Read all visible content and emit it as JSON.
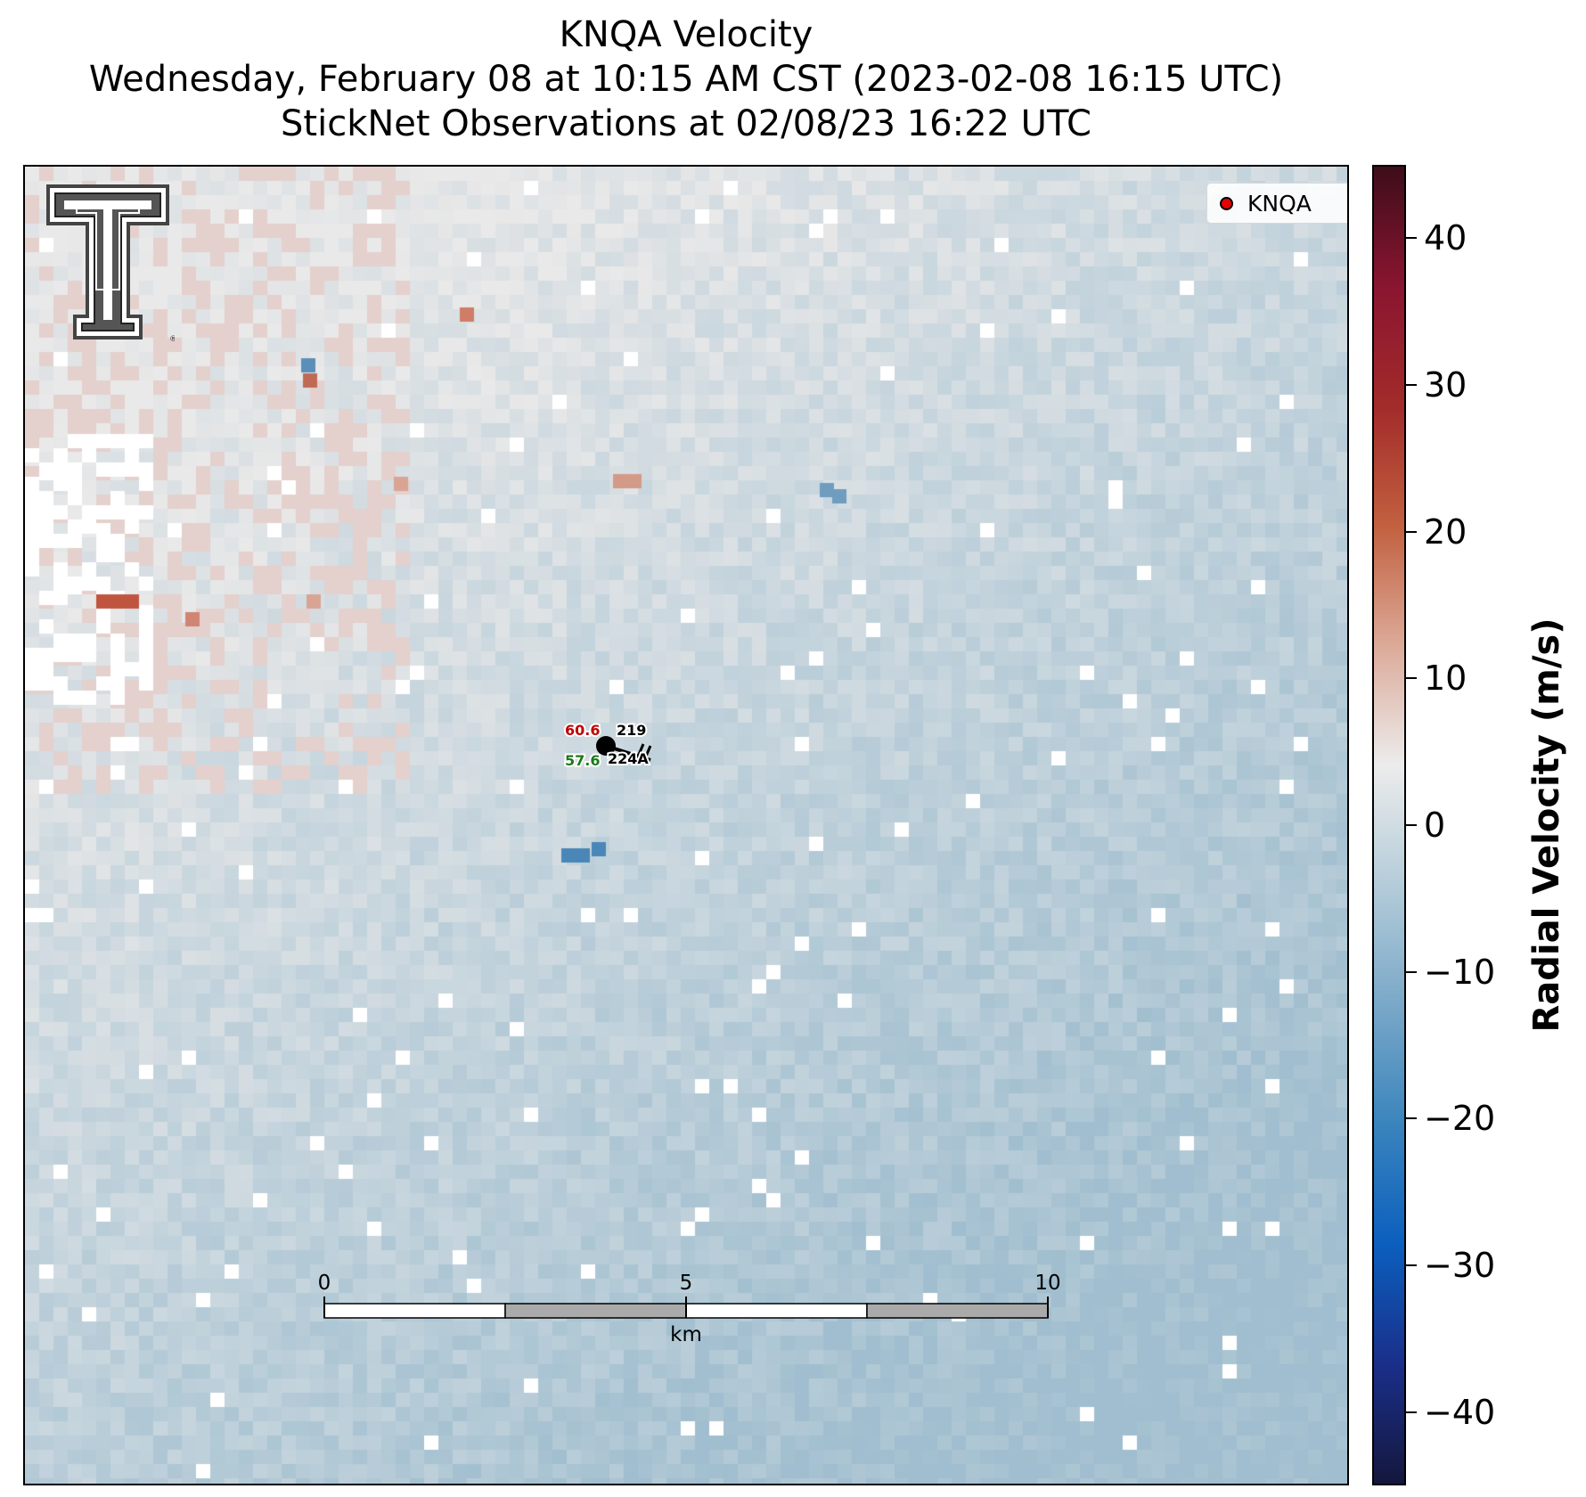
{
  "title": {
    "line1": "KNQA Velocity",
    "line2": "Wednesday, February 08 at 10:15 AM CST (2023-02-08 16:15 UTC)",
    "line3": "StickNet Observations at 02/08/23 16:22 UTC"
  },
  "legend": {
    "label": "KNQA",
    "marker_color": "#e60000"
  },
  "station": {
    "temperature": "60.6",
    "dewpoint": "57.6",
    "pressure": "219",
    "id": "224A",
    "temperature_color": "#c00000",
    "dewpoint_color": "#1a7a1a"
  },
  "scalebar": {
    "ticks": [
      "0",
      "5",
      "10"
    ],
    "unit": "km"
  },
  "colorbar": {
    "label": "Radial Velocity (m/s)",
    "min": -45,
    "max": 45,
    "tick_values": [
      40,
      30,
      20,
      10,
      0,
      -10,
      -20,
      -30,
      -40
    ],
    "tick_labels": [
      "40",
      "30",
      "20",
      "10",
      "0",
      "−10",
      "−20",
      "−30",
      "−40"
    ],
    "colors": [
      "#14173d",
      "#1a2f8a",
      "#0b5fbe",
      "#3a84bd",
      "#7aa8c8",
      "#b4ccd9",
      "#ececec",
      "#dcaa99",
      "#c2603f",
      "#a22b2a",
      "#8a1530",
      "#3d0d1a"
    ]
  },
  "logo": {
    "name": "texas-tech-double-t-logo"
  }
}
